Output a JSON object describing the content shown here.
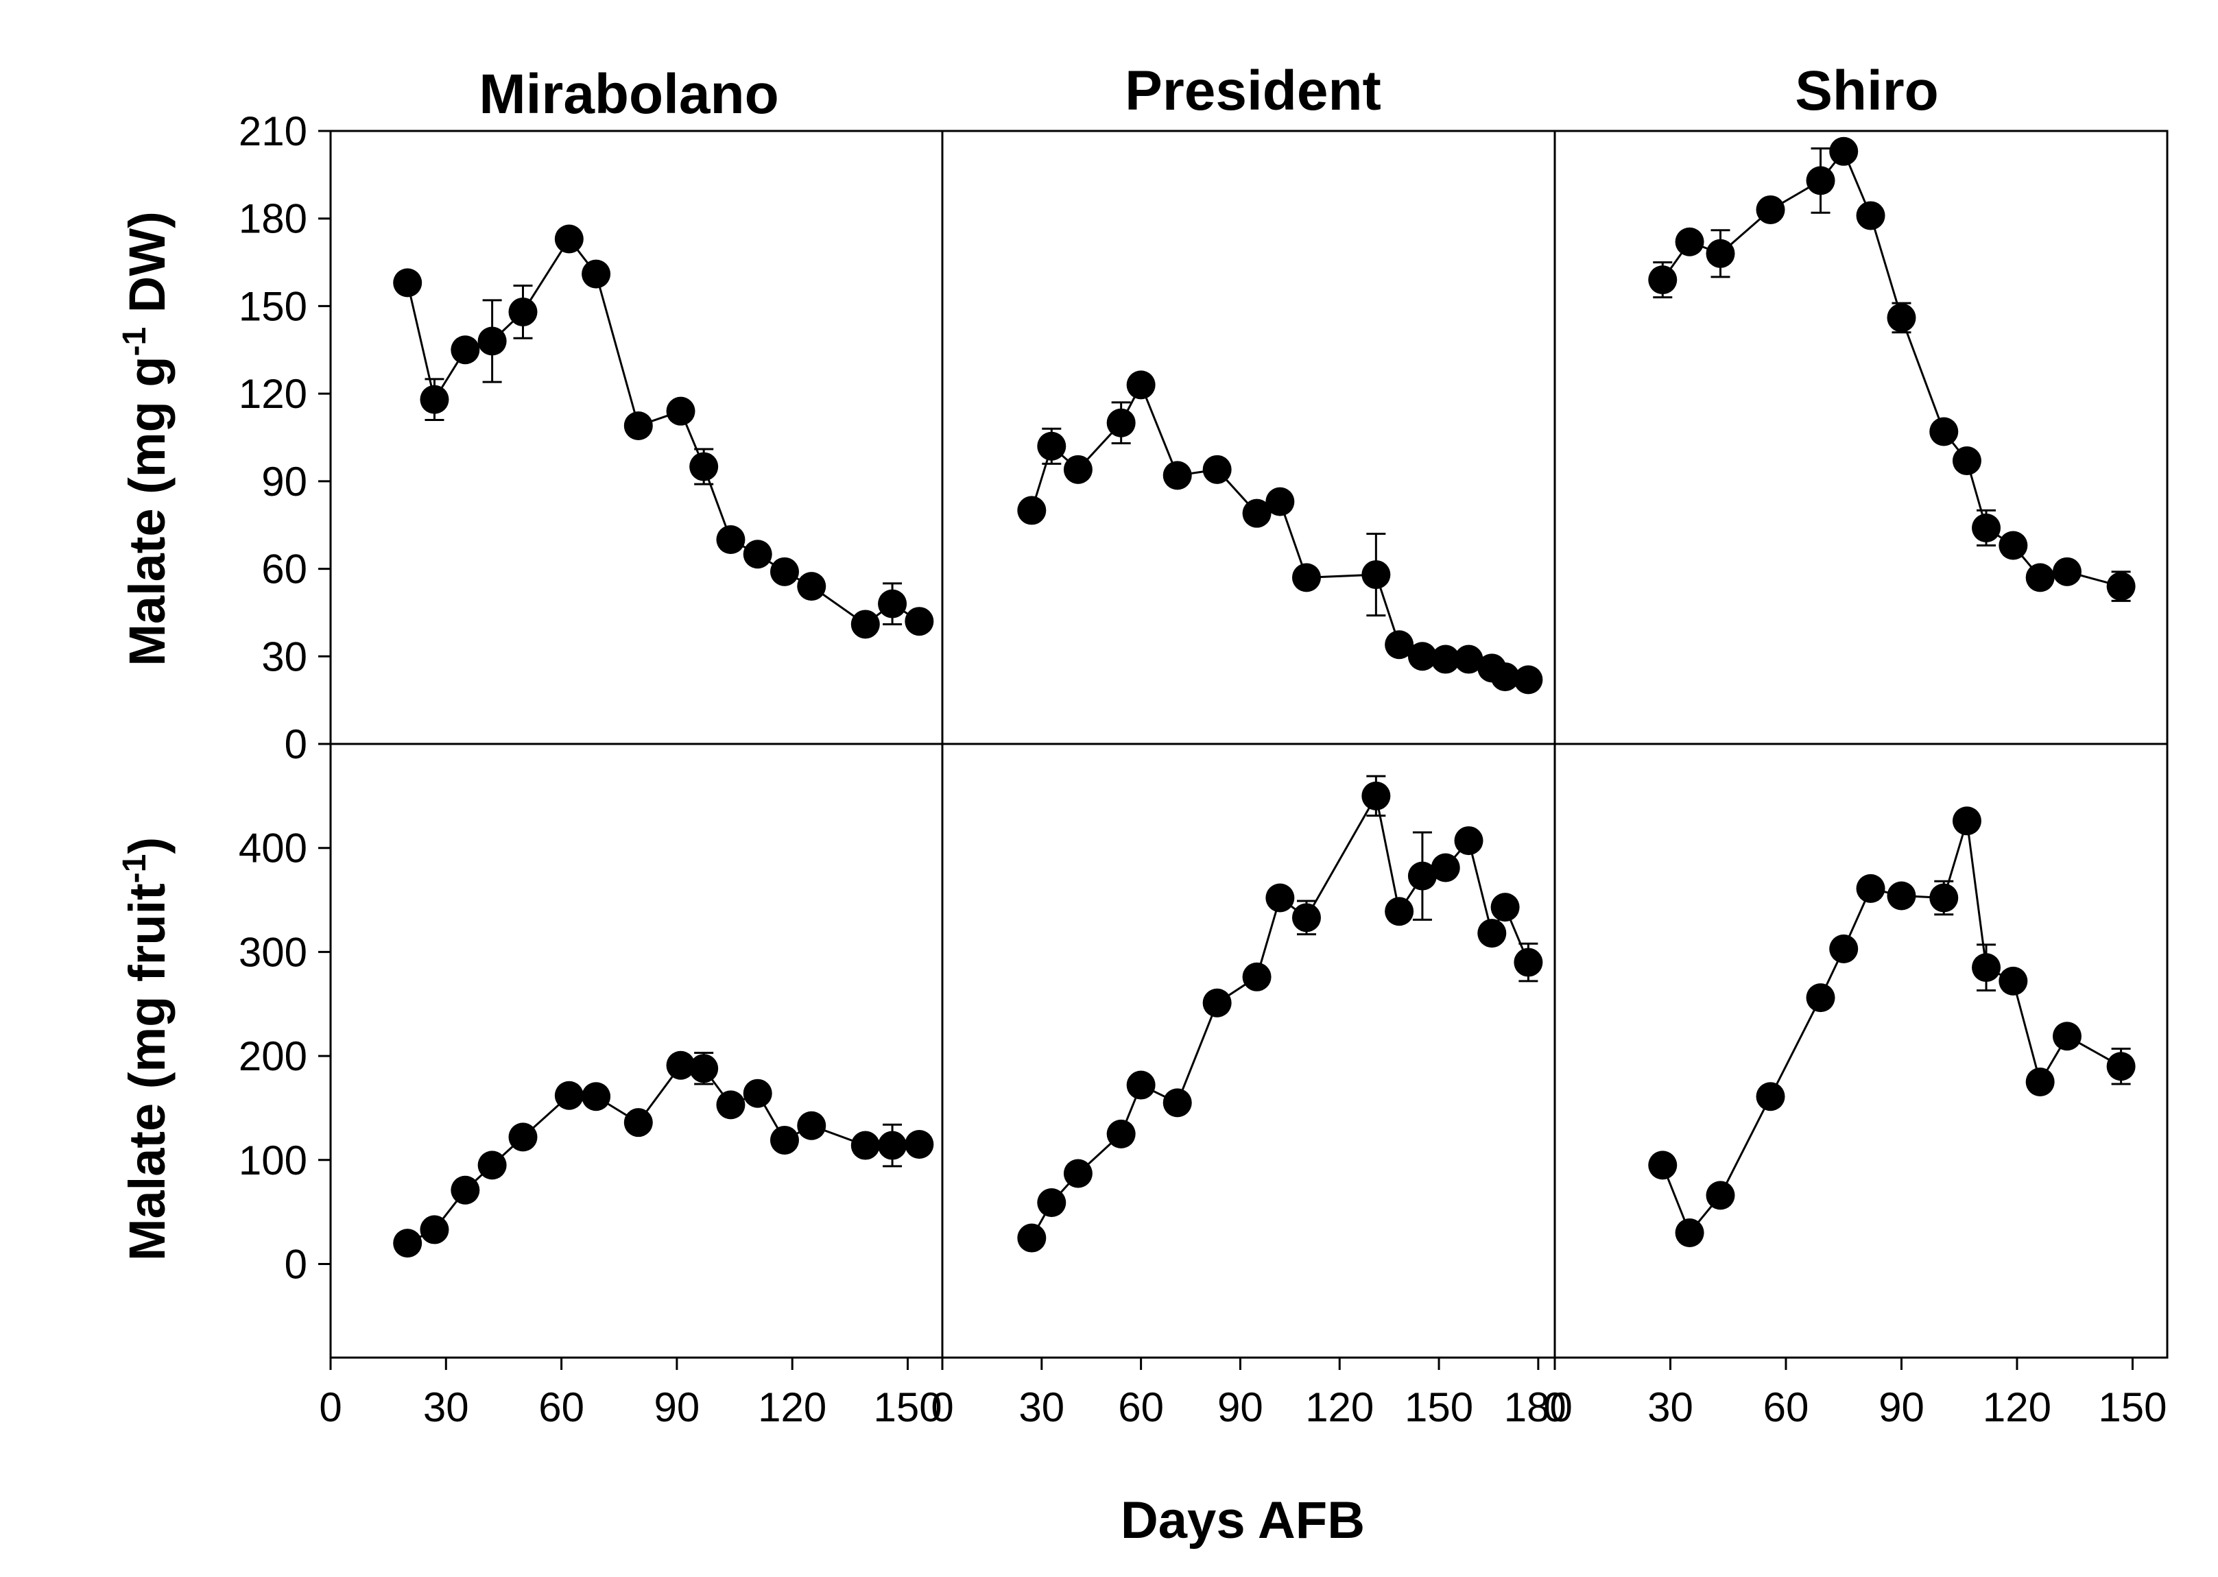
{
  "figure": {
    "column_titles": [
      "Mirabolano",
      "President",
      "Shiro"
    ],
    "x_label": "Days AFB",
    "y_label_top": {
      "main": "Malate (mg g",
      "sup": "-1",
      "tail": " DW)"
    },
    "y_label_bottom": {
      "main": "Malate (mg fruit",
      "sup": "-1",
      "tail": ")"
    },
    "x_ticks": [
      [
        0,
        30,
        60,
        90,
        120,
        150
      ],
      [
        0,
        30,
        60,
        90,
        120,
        150,
        180
      ],
      [
        0,
        30,
        60,
        90,
        120,
        150
      ]
    ],
    "y_ticks_top": [
      0,
      30,
      60,
      90,
      120,
      150,
      180,
      210
    ],
    "y_ticks_bottom": [
      0,
      100,
      200,
      300,
      400
    ]
  },
  "chart_data": [
    {
      "type": "line",
      "title": "Mirabolano",
      "xlabel": "Days AFB",
      "ylabel": "Malate (mg g-1 DW)",
      "xlim": [
        0,
        159
      ],
      "ylim": [
        0,
        210
      ],
      "marker": "filled-circle",
      "x": [
        20,
        27,
        35,
        42,
        50,
        62,
        69,
        80,
        91,
        97,
        104,
        111,
        118,
        125,
        139,
        146,
        153
      ],
      "y": [
        158,
        118,
        135,
        138,
        148,
        173,
        161,
        109,
        114,
        95,
        70,
        65,
        59,
        54,
        41,
        48,
        42
      ],
      "error": [
        0,
        7,
        0,
        14,
        9,
        0,
        0,
        0,
        0,
        6,
        0,
        0,
        0,
        0,
        0,
        7,
        0
      ]
    },
    {
      "type": "line",
      "title": "President",
      "xlabel": "Days AFB",
      "ylabel": "Malate (mg g-1 DW)",
      "xlim": [
        0,
        185
      ],
      "ylim": [
        0,
        210
      ],
      "marker": "filled-circle",
      "x": [
        27,
        33,
        41,
        54,
        60,
        71,
        83,
        95,
        102,
        110,
        131,
        138,
        145,
        152,
        159,
        166,
        170,
        177
      ],
      "y": [
        80,
        102,
        94,
        110,
        123,
        92,
        94,
        79,
        83,
        57,
        58,
        34,
        30,
        29,
        29,
        26,
        23,
        22
      ],
      "error": [
        0,
        6,
        0,
        7,
        0,
        0,
        0,
        0,
        0,
        0,
        14,
        0,
        0,
        0,
        0,
        0,
        0,
        0
      ]
    },
    {
      "type": "line",
      "title": "Shiro",
      "xlabel": "Days AFB",
      "ylabel": "Malate (mg g-1 DW)",
      "xlim": [
        0,
        159
      ],
      "ylim": [
        0,
        210
      ],
      "marker": "filled-circle",
      "x": [
        28,
        35,
        43,
        56,
        69,
        75,
        82,
        90,
        101,
        107,
        112,
        119,
        126,
        133,
        147
      ],
      "y": [
        159,
        172,
        168,
        183,
        193,
        203,
        181,
        146,
        107,
        97,
        74,
        68,
        57,
        59,
        54
      ],
      "error": [
        6,
        0,
        8,
        0,
        11,
        0,
        0,
        5,
        0,
        0,
        6,
        0,
        0,
        0,
        5
      ]
    },
    {
      "type": "line",
      "title": "Mirabolano",
      "xlabel": "Days AFB",
      "ylabel": "Malate (mg fruit-1)",
      "xlim": [
        0,
        159
      ],
      "ylim": [
        -90,
        500
      ],
      "marker": "filled-circle",
      "x": [
        20,
        27,
        35,
        42,
        50,
        62,
        69,
        80,
        91,
        97,
        104,
        111,
        118,
        125,
        139,
        146,
        153
      ],
      "y": [
        20,
        33,
        71,
        95,
        122,
        162,
        161,
        136,
        191,
        188,
        153,
        164,
        119,
        133,
        114,
        114,
        115
      ],
      "error": [
        0,
        0,
        0,
        0,
        0,
        0,
        0,
        0,
        0,
        15,
        0,
        0,
        0,
        0,
        0,
        20,
        0
      ]
    },
    {
      "type": "line",
      "title": "President",
      "xlabel": "Days AFB",
      "ylabel": "Malate (mg fruit-1)",
      "xlim": [
        0,
        185
      ],
      "ylim": [
        -90,
        500
      ],
      "marker": "filled-circle",
      "x": [
        27,
        33,
        41,
        54,
        60,
        71,
        83,
        95,
        102,
        110,
        131,
        138,
        145,
        152,
        159,
        166,
        170,
        177
      ],
      "y": [
        25,
        59,
        87,
        125,
        172,
        155,
        251,
        276,
        352,
        333,
        450,
        339,
        373,
        381,
        407,
        318,
        343,
        290
      ],
      "error": [
        0,
        0,
        0,
        0,
        0,
        0,
        0,
        0,
        0,
        16,
        19,
        0,
        42,
        0,
        0,
        0,
        0,
        18
      ]
    },
    {
      "type": "line",
      "title": "Shiro",
      "xlabel": "Days AFB",
      "ylabel": "Malate (mg fruit-1)",
      "xlim": [
        0,
        159
      ],
      "ylim": [
        -90,
        500
      ],
      "marker": "filled-circle",
      "x": [
        28,
        35,
        43,
        56,
        69,
        75,
        82,
        90,
        101,
        107,
        112,
        119,
        126,
        133,
        147
      ],
      "y": [
        95,
        30,
        66,
        161,
        256,
        303,
        361,
        354,
        352,
        426,
        285,
        272,
        175,
        219,
        190
      ],
      "error": [
        0,
        0,
        0,
        0,
        0,
        0,
        0,
        0,
        16,
        0,
        22,
        0,
        0,
        0,
        17
      ]
    }
  ]
}
